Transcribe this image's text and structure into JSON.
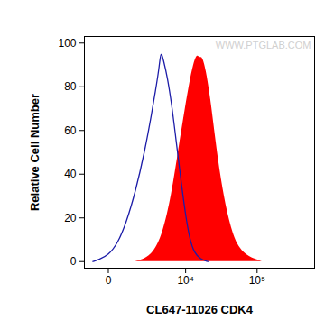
{
  "chart_data": {
    "type": "line",
    "xlabel": "CL647-11026 CDK4",
    "ylabel": "Relative Cell Number",
    "watermark": "WWW.PTGLAB.COM",
    "log": "x",
    "xlim": [
      -1100,
      600000
    ],
    "xticks": [
      0,
      {
        "value": 10000,
        "label": "10⁴"
      },
      {
        "value": 100000,
        "label": "10⁵"
      }
    ],
    "ylim": [
      -3,
      103
    ],
    "yticks": [
      0,
      20,
      40,
      60,
      80,
      100
    ],
    "grid": false,
    "series": [
      {
        "type": "line",
        "color": "#1c1ca8",
        "x": [
          -611,
          -324,
          0,
          324,
          754,
          1321,
          2075,
          2849,
          3307,
          3817,
          4098,
          4545,
          5204,
          6140,
          7216,
          8452,
          9881,
          11516,
          13410,
          16530,
          20950
        ],
        "values": [
          0,
          1,
          3,
          8,
          18,
          32,
          50,
          68,
          78,
          88,
          97,
          92,
          85,
          72,
          55,
          38,
          22,
          10,
          4,
          1,
          0
        ]
      },
      {
        "type": "area",
        "color": "#ff0000",
        "x": [
          1321,
          2075,
          3071,
          4392,
          6140,
          7935,
          9881,
          11516,
          13010,
          14670,
          16050,
          17540,
          19760,
          22880,
          26470,
          30620,
          37480,
          47190,
          57660,
          76650,
          117400
        ],
        "values": [
          0,
          1,
          4,
          12,
          30,
          52,
          70,
          82,
          90,
          95,
          93,
          94,
          88,
          75,
          58,
          42,
          25,
          12,
          6,
          2,
          0
        ]
      }
    ]
  }
}
